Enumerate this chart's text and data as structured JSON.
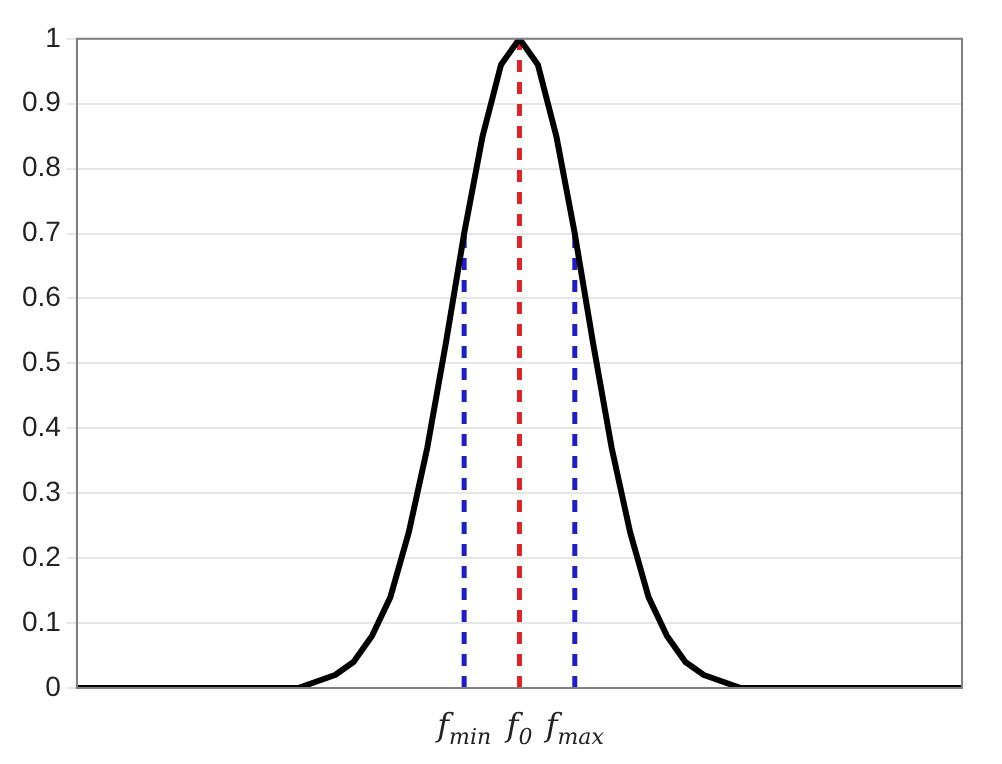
{
  "chart_data": {
    "type": "line",
    "categories": [
      null,
      null,
      null,
      null,
      null,
      null,
      null,
      null,
      null,
      null,
      null,
      null,
      null,
      null,
      null,
      null,
      null,
      null,
      null,
      null,
      null,
      "f$_{min}$",
      null,
      null,
      "f$_{0}$",
      null,
      null,
      "f$_{max}$",
      null,
      null,
      null,
      null,
      null,
      null,
      null,
      null,
      null,
      null,
      null,
      null,
      null,
      null,
      null,
      null,
      null,
      null,
      null,
      null,
      null
    ],
    "series": [
      {
        "color": "#000000",
        "values": [
          0,
          0,
          0,
          0,
          0,
          0,
          0,
          0,
          0,
          0,
          0,
          0,
          0,
          0.01,
          0.02,
          0.04,
          0.08,
          0.14,
          0.24,
          0.37,
          0.53,
          0.7,
          0.85,
          0.96,
          1,
          0.96,
          0.85,
          0.7,
          0.53,
          0.37,
          0.24,
          0.14,
          0.08,
          0.04,
          0.02,
          0.01,
          0,
          0,
          0,
          0,
          0,
          0,
          0,
          0,
          0,
          0,
          0,
          0,
          0
        ]
      }
    ],
    "ylim": [
      0,
      1
    ],
    "yticks": [
      0,
      0.1,
      0.2,
      0.3,
      0.4,
      0.5,
      0.6,
      0.7,
      0.8,
      0.9,
      1
    ],
    "grid": "y",
    "marker": "none",
    "line_style": "solid",
    "ref_lines": [
      {
        "axis": "x",
        "value": "f$_{min}$",
        "color": "#1f1fbf",
        "line_style": "dashed"
      },
      {
        "axis": "x",
        "value": "f$_{0}$",
        "color": "#d62728",
        "line_style": "dashed"
      },
      {
        "axis": "x",
        "value": "f$_{max}$",
        "color": "#1f1fbf",
        "line_style": "dashed"
      }
    ]
  }
}
